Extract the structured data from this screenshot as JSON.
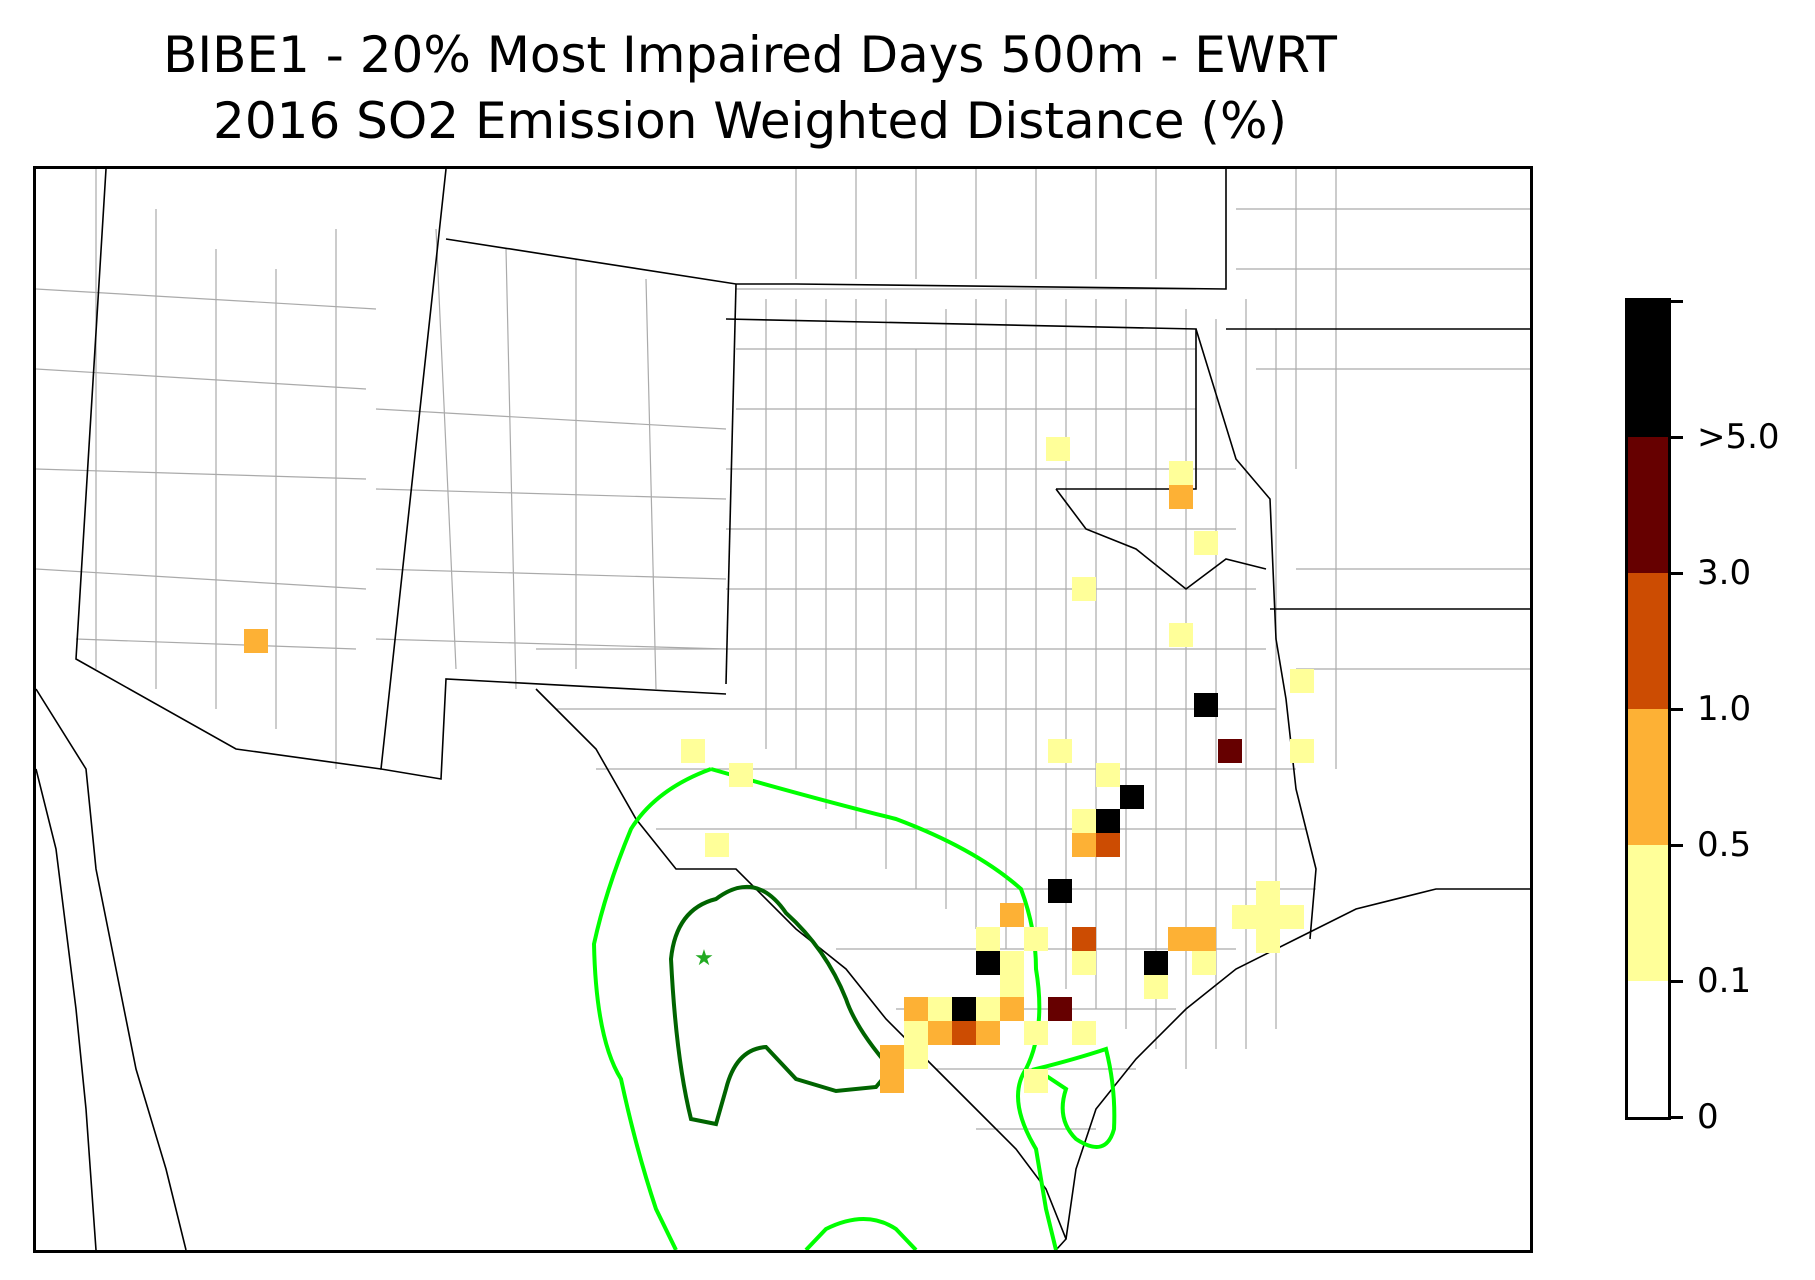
{
  "title": {
    "line1": "BIBE1 - 20% Most Impaired Days 500m - EWRT",
    "line2": "2016 SO2 Emission Weighted Distance (%)"
  },
  "colorbar": {
    "segments": [
      {
        "from": "0",
        "to": "0.1",
        "color": "#ffffff"
      },
      {
        "from": "0.1",
        "to": "0.5",
        "color": "#ffff99"
      },
      {
        "from": "0.5",
        "to": "1.0",
        "color": "#fdb135"
      },
      {
        "from": "1.0",
        "to": "3.0",
        "color": "#cc4c02"
      },
      {
        "from": "3.0",
        "to": ">5.0",
        "color": "#660000"
      },
      {
        "from": ">5.0",
        "to": "",
        "color": "#000000"
      }
    ],
    "tick_labels": [
      "0",
      "0.1",
      "0.5",
      "1.0",
      "3.0",
      ">5.0"
    ]
  },
  "contours": {
    "inner_color": "#006400",
    "outer_color": "#00ff00"
  },
  "map": {
    "receptor_marker": "star-icon",
    "receptor_color": "#22aa22"
  }
}
